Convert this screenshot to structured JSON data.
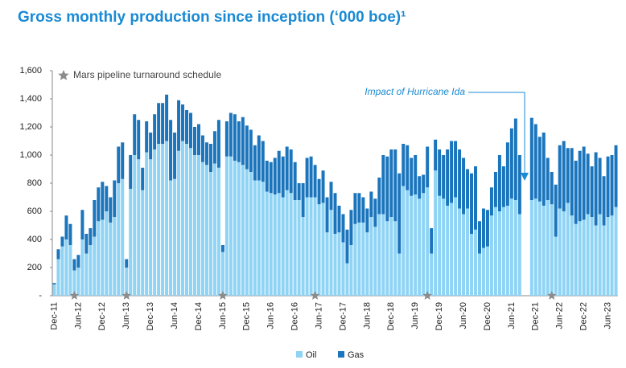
{
  "chart_data": {
    "type": "stacked_bar",
    "title": "Gross monthly production since inception (‘000 boe)¹",
    "marker_legend": "Mars pipeline turnaround schedule",
    "annotation": "Impact of Hurricane Ida",
    "categories": [
      "Dec-11",
      null,
      null,
      null,
      null,
      null,
      "Jun-12",
      null,
      null,
      null,
      null,
      null,
      "Dec-12",
      null,
      null,
      null,
      null,
      null,
      "Jun-13",
      null,
      null,
      null,
      null,
      null,
      "Dec-13",
      null,
      null,
      null,
      null,
      null,
      "Jun-14",
      null,
      null,
      null,
      null,
      null,
      "Dec-14",
      null,
      null,
      null,
      null,
      null,
      "Jun-15",
      null,
      null,
      null,
      null,
      null,
      "Dec-15",
      null,
      null,
      null,
      null,
      null,
      "Jun-16",
      null,
      null,
      null,
      null,
      null,
      "Dec-16",
      null,
      null,
      null,
      null,
      null,
      "Jun-17",
      null,
      null,
      null,
      null,
      null,
      "Dec-17",
      null,
      null,
      null,
      null,
      null,
      "Jun-18",
      null,
      null,
      null,
      null,
      null,
      "Dec-18",
      null,
      null,
      null,
      null,
      null,
      "Jun-19",
      null,
      null,
      null,
      null,
      null,
      "Dec-19",
      null,
      null,
      null,
      null,
      null,
      "Jun-20",
      null,
      null,
      null,
      null,
      null,
      "Dec-20",
      null,
      null,
      null,
      null,
      null,
      "Jun-21",
      null,
      null,
      null,
      null,
      null,
      "Dec-21",
      null,
      null,
      null,
      null,
      null,
      "Jun-22",
      null,
      null,
      null,
      null,
      null,
      "Dec-22",
      null,
      null,
      null,
      null,
      null,
      "Jun-23",
      null,
      null
    ],
    "series": [
      {
        "name": "Oil",
        "color": "#8fd3f5",
        "values": [
          80,
          260,
          350,
          400,
          360,
          180,
          200,
          400,
          300,
          360,
          420,
          530,
          540,
          600,
          520,
          560,
          800,
          830,
          200,
          760,
          1000,
          970,
          750,
          1020,
          970,
          1040,
          1080,
          1080,
          1100,
          820,
          830,
          1030,
          1100,
          1080,
          1050,
          1000,
          1000,
          950,
          930,
          880,
          940,
          910,
          310,
          990,
          990,
          960,
          950,
          930,
          900,
          880,
          820,
          820,
          810,
          740,
          730,
          720,
          730,
          700,
          750,
          730,
          680,
          680,
          560,
          700,
          700,
          700,
          650,
          660,
          450,
          610,
          440,
          450,
          380,
          230,
          360,
          510,
          520,
          520,
          450,
          560,
          490,
          580,
          580,
          530,
          560,
          530,
          300,
          780,
          750,
          710,
          720,
          690,
          730,
          770,
          300,
          890,
          710,
          690,
          640,
          660,
          700,
          620,
          580,
          620,
          440,
          470,
          300,
          340,
          350,
          570,
          630,
          600,
          630,
          640,
          690,
          680,
          580,
          null,
          null,
          680,
          690,
          670,
          640,
          680,
          650,
          420,
          620,
          600,
          660,
          570,
          510,
          530,
          540,
          580,
          560,
          500,
          580,
          500,
          560,
          570,
          630
        ]
      },
      {
        "name": "Gas",
        "color": "#1b75bc",
        "values": [
          10,
          70,
          70,
          170,
          150,
          80,
          90,
          210,
          140,
          120,
          260,
          240,
          270,
          180,
          180,
          260,
          260,
          260,
          60,
          240,
          290,
          280,
          160,
          220,
          190,
          250,
          290,
          290,
          330,
          430,
          330,
          360,
          260,
          240,
          250,
          200,
          220,
          190,
          160,
          200,
          230,
          340,
          50,
          250,
          310,
          330,
          290,
          340,
          310,
          300,
          250,
          320,
          290,
          220,
          220,
          260,
          300,
          290,
          310,
          310,
          270,
          120,
          240,
          280,
          290,
          230,
          180,
          230,
          250,
          200,
          290,
          190,
          200,
          240,
          250,
          220,
          210,
          180,
          170,
          180,
          200,
          260,
          420,
          460,
          480,
          510,
          570,
          300,
          320,
          270,
          280,
          160,
          130,
          290,
          180,
          220,
          330,
          310,
          400,
          440,
          400,
          420,
          400,
          280,
          430,
          450,
          230,
          280,
          260,
          200,
          250,
          400,
          290,
          450,
          500,
          580,
          420,
          null,
          null,
          585,
          530,
          460,
          520,
          300,
          230,
          370,
          450,
          500,
          390,
          480,
          450,
          500,
          520,
          430,
          360,
          520,
          400,
          350,
          430,
          430,
          440
        ]
      }
    ],
    "ylim": [
      0,
      1600
    ],
    "yticks": [
      {
        "value": 0,
        "label": "-"
      },
      200,
      400,
      600,
      800,
      {
        "value": 1000,
        "label": "1,000"
      },
      {
        "value": 1200,
        "label": "1,200"
      },
      {
        "value": 1400,
        "label": "1,400"
      },
      {
        "value": 1600,
        "label": "1,600"
      }
    ]
  }
}
